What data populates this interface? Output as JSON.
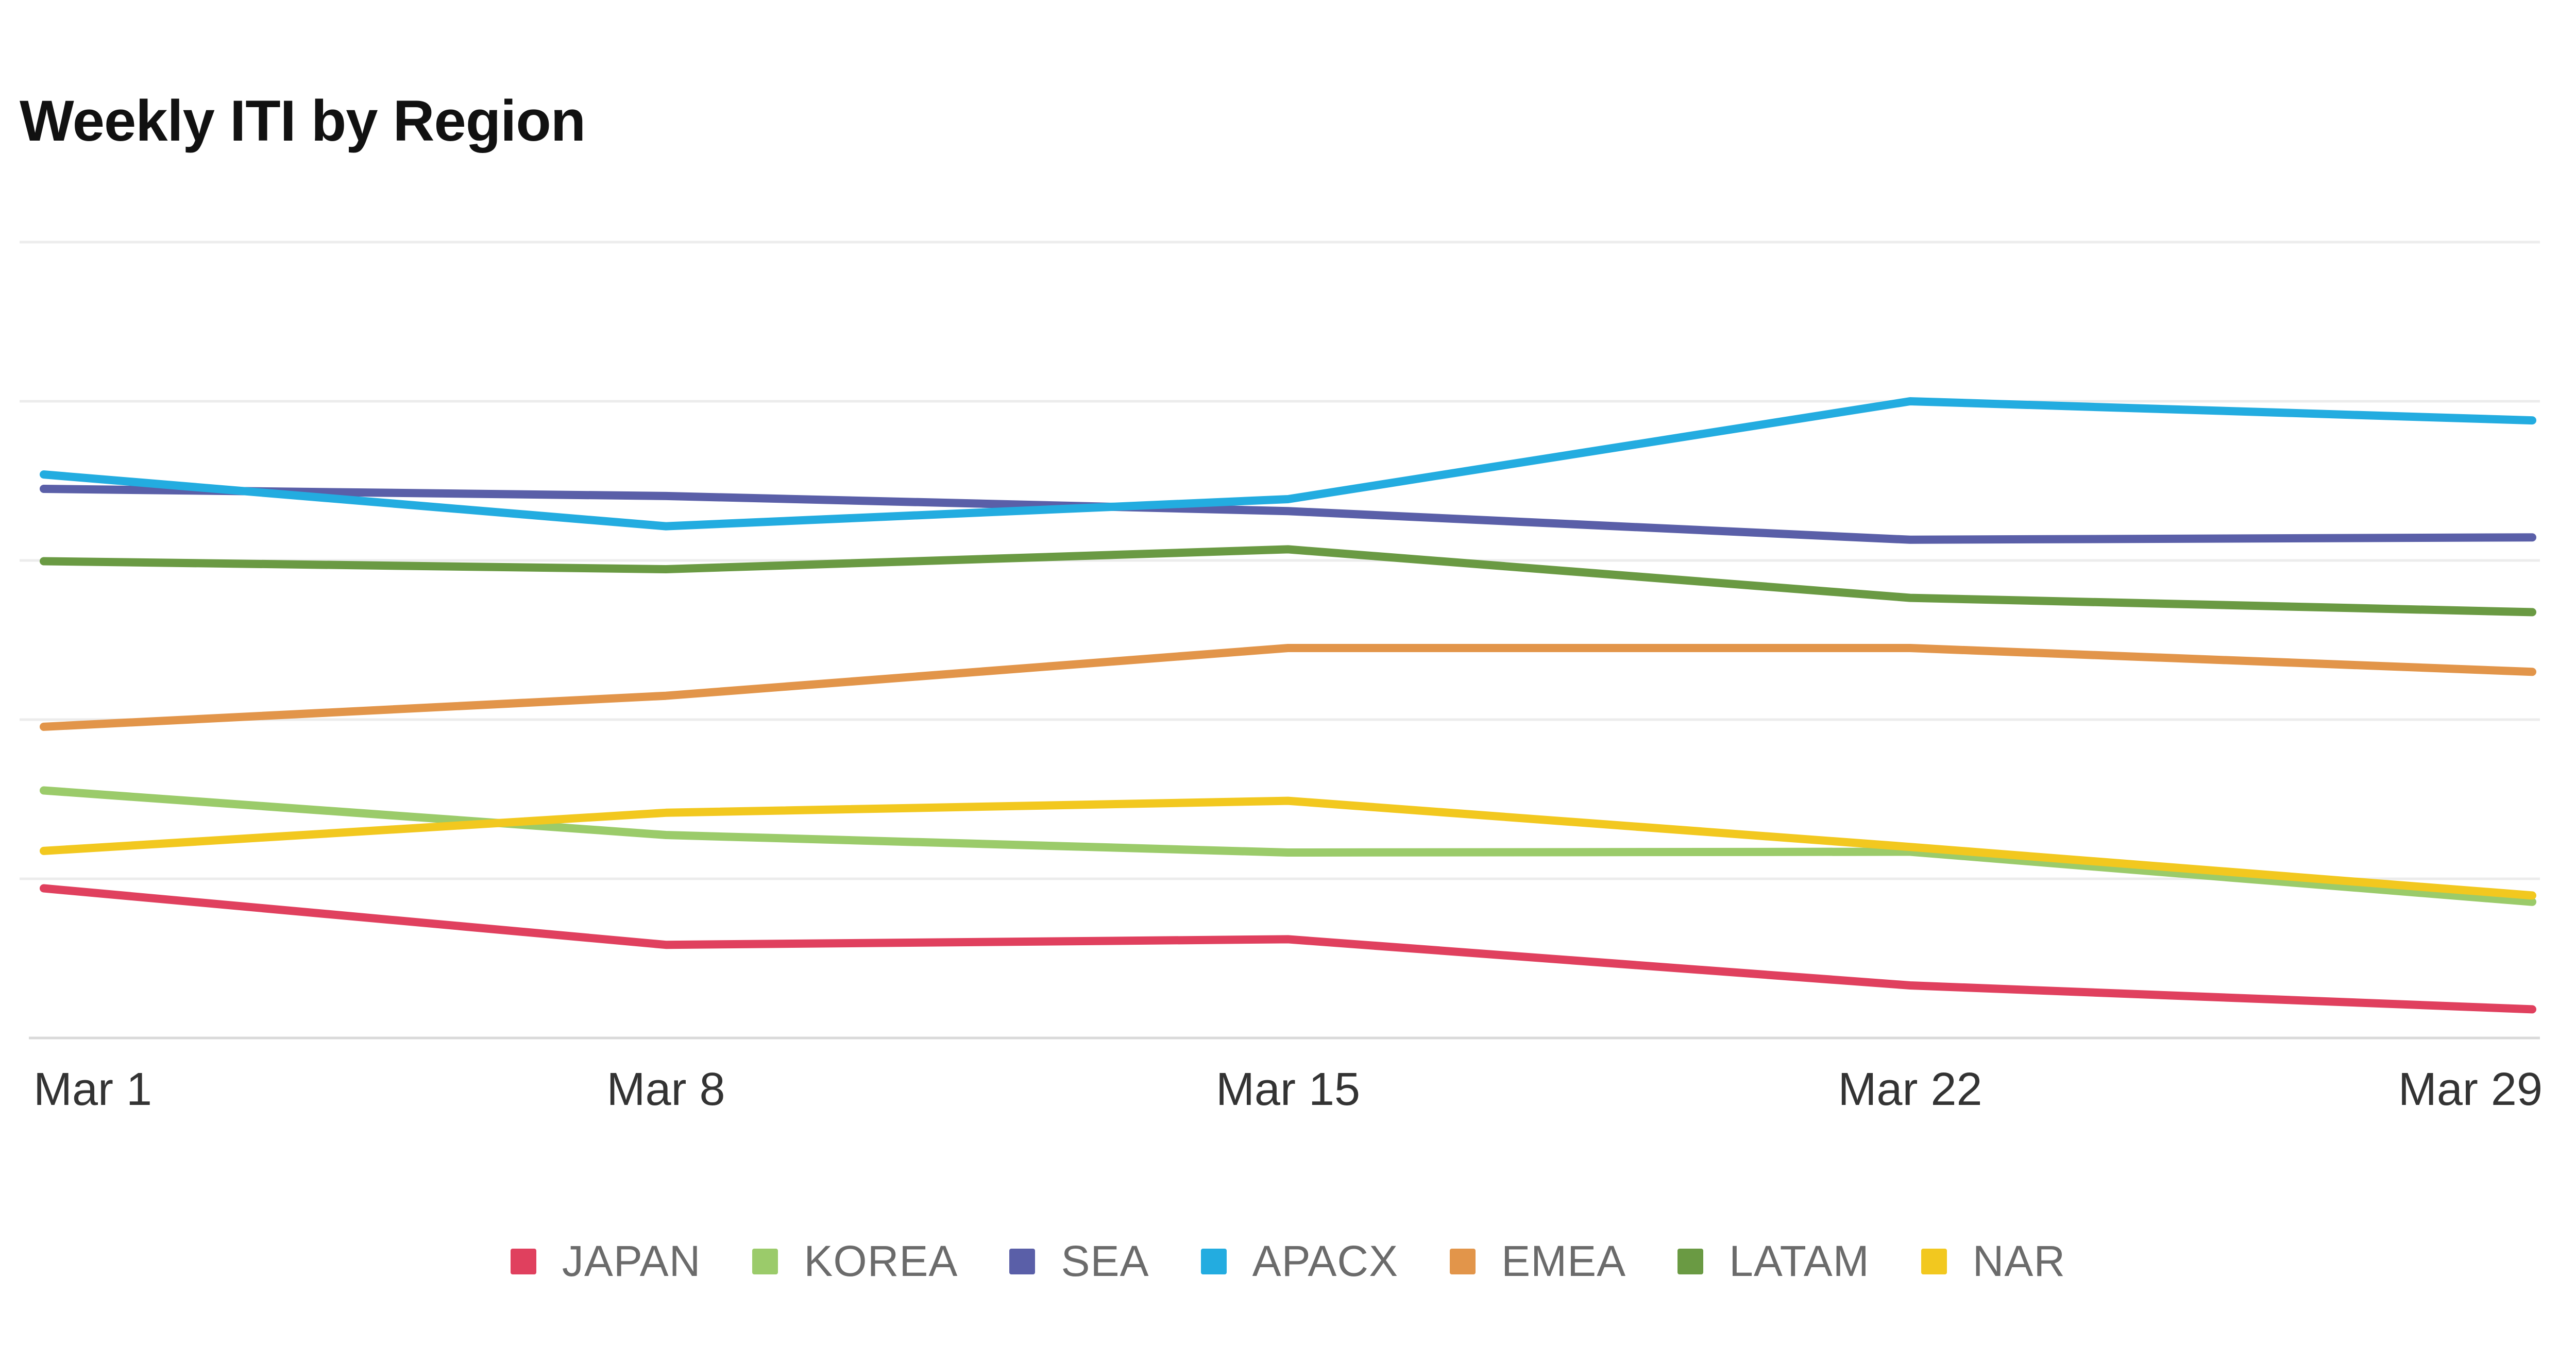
{
  "chart_data": {
    "type": "line",
    "title": "Weekly ITI by Region",
    "xlabel": "",
    "ylabel": "",
    "categories": [
      "Mar 1",
      "Mar 8",
      "Mar 15",
      "Mar 22",
      "Mar 29"
    ],
    "ylim": [
      0,
      100
    ],
    "gridlines": [
      80,
      60,
      40,
      20
    ],
    "grid": true,
    "legend_position": "bottom-center",
    "series": [
      {
        "name": "JAPAN",
        "color": "#e0405e",
        "values": [
          18.8,
          11.7,
          12.4,
          6.6,
          3.6
        ]
      },
      {
        "name": "KOREA",
        "color": "#9bcb6a",
        "values": [
          31.1,
          25.5,
          23.3,
          23.4,
          17.1
        ]
      },
      {
        "name": "SEA",
        "color": "#5a5fa8",
        "values": [
          69.0,
          68.1,
          66.2,
          62.6,
          62.9
        ]
      },
      {
        "name": "APACX",
        "color": "#23ace0",
        "values": [
          70.8,
          64.3,
          67.7,
          80.0,
          77.6
        ]
      },
      {
        "name": "EMEA",
        "color": "#e2954a",
        "values": [
          39.1,
          43.0,
          49.0,
          49.0,
          46.0
        ]
      },
      {
        "name": "LATAM",
        "color": "#6a9a43",
        "values": [
          59.9,
          58.9,
          61.4,
          55.3,
          53.5
        ]
      },
      {
        "name": "NAR",
        "color": "#f2c81f",
        "values": [
          23.5,
          28.3,
          29.8,
          24.0,
          17.9
        ]
      }
    ]
  }
}
